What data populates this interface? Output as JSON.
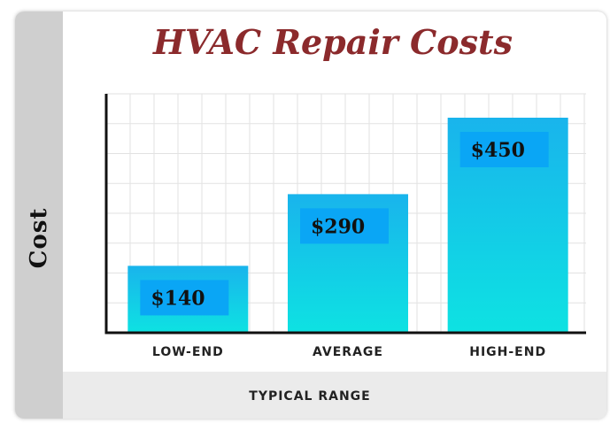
{
  "chart_data": {
    "type": "bar",
    "title": "HVAC Repair Costs",
    "xlabel": "TYPICAL RANGE",
    "ylabel": "Cost",
    "categories": [
      "LOW-END",
      "AVERAGE",
      "HIGH-END"
    ],
    "values": [
      140,
      290,
      450
    ],
    "data_labels": [
      "$140",
      "$290",
      "$450"
    ],
    "ylim": [
      0,
      500
    ],
    "grid": true,
    "legend": "none"
  },
  "colors": {
    "title": "#8b2a2c",
    "bar_top": "#19b4ec",
    "bar_bottom": "#0ee2e2",
    "label_box": "#0aa6f5",
    "grid": "#e2e2e2",
    "axis": "#111111"
  }
}
